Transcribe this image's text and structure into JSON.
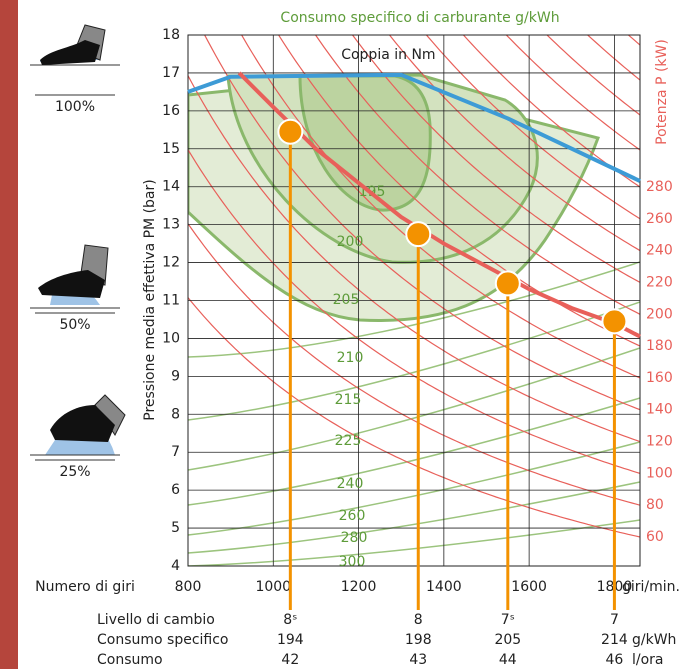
{
  "chart_data": {
    "type": "line",
    "title": "Consumo specifico di carburante g/kWh",
    "y_label": "Pressione media effettiva PM (bar)",
    "y2_label": "Potenza P (kW)",
    "x_label": "Numero di giri",
    "x_unit": "giri/min.",
    "xlim": [
      800,
      1860
    ],
    "xticks": [
      800,
      1000,
      1200,
      1400,
      1600,
      1800
    ],
    "ylim": [
      4,
      18
    ],
    "yticks": [
      4,
      5,
      6,
      7,
      8,
      9,
      10,
      11,
      12,
      13,
      14,
      15,
      16,
      17,
      18
    ],
    "y2lim": [
      41.8,
      375.5
    ],
    "y2ticks": [
      60,
      80,
      100,
      120,
      140,
      160,
      180,
      200,
      220,
      240,
      260,
      280
    ],
    "grid": true,
    "series": [
      {
        "name": "Coppia in Nm",
        "color": "#3d9bd6",
        "x": [
          800,
          900,
          1300,
          1550,
          1860
        ],
        "values": [
          16.5,
          16.9,
          16.95,
          15.8,
          14.15
        ]
      },
      {
        "color": "#e8605a",
        "x": [
          920,
          1000,
          1100,
          1200,
          1300,
          1400,
          1500,
          1600,
          1700,
          1800,
          1860
        ],
        "values": [
          17,
          16.1,
          15.0,
          14.1,
          13.2,
          12.5,
          11.9,
          11.3,
          10.8,
          10.4,
          10.05
        ]
      },
      {
        "color": "#f39200",
        "style": "points",
        "x": [
          1040,
          1340,
          1550,
          1800
        ],
        "values": [
          15.45,
          12.75,
          11.45,
          10.45
        ]
      }
    ],
    "contour_labels": [
      195,
      200,
      205,
      210,
      215,
      225,
      240,
      260,
      280,
      300
    ]
  },
  "pedals": [
    "100%",
    "50%",
    "25%"
  ],
  "table": {
    "rows": [
      {
        "label": "Livello di cambio",
        "cells": [
          "8ˢ",
          "8",
          "7ˢ",
          "7"
        ]
      },
      {
        "label": "Consumo specifico",
        "cells": [
          194,
          198,
          205,
          214
        ],
        "unit": "g/kWh"
      },
      {
        "label": "Consumo",
        "cells": [
          42,
          43,
          44,
          46
        ],
        "unit": "l/ora"
      }
    ]
  }
}
